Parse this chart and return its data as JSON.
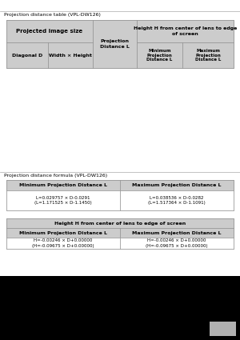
{
  "bg_color": "#000000",
  "content_bg": "#ffffff",
  "gray_bar_color": "#aaaaaa",
  "table_header_bg": "#cccccc",
  "table_border_color": "#888888",
  "text_color": "#000000",
  "line1_text": "Projection distance table (VPL-DW126)",
  "line2_text": "Projection distance formula (VPL-DW126)",
  "formula_table1_header1": "Minimum Projection Distance L",
  "formula_table1_header2": "Maximum Projection Distance L",
  "formula_table1_val1": "L=0.029757 × D-0.0291\n(L=1.171525 × D-1.1450)",
  "formula_table1_val2": "L=0.038536 × D-0.0282\n(L=1.517364 × D-1.1091)",
  "formula_table2_header": "Height H from center of lens to edge of screen",
  "formula_table2_subheader1": "Minimum Projection Distance L",
  "formula_table2_subheader2": "Maximum Projection Distance L",
  "formula_table2_val1": "H=-0.00246 × D+0.00000\n(H=-0.09675 × D+0.00000)",
  "formula_table2_val2": "H=-0.00246 × D+0.00000\n(H=-0.09675 × D+0.00000)",
  "page_rect_color": "#b0b0b0"
}
